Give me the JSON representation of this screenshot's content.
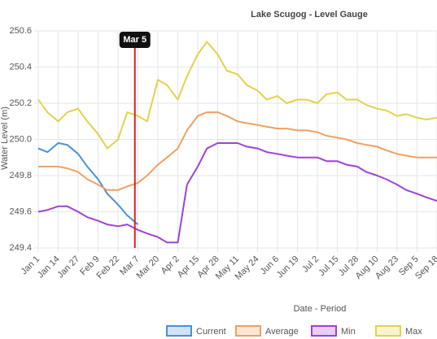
{
  "chart_data": {
    "type": "line",
    "title": "Lake Scugog - Level Gauge",
    "xlabel": "Date - Period",
    "ylabel": "Water Level (m)",
    "x": [
      0,
      6,
      13,
      19,
      26,
      32,
      39,
      45,
      52,
      58,
      65,
      71,
      78,
      84,
      91,
      97,
      104,
      110,
      117,
      123,
      130,
      136,
      143,
      149,
      156,
      162,
      169,
      175,
      182,
      188,
      195,
      201,
      208,
      214,
      221,
      227,
      234,
      240,
      247,
      253,
      260
    ],
    "xlim": [
      0,
      260
    ],
    "xticks": [
      {
        "value": 0,
        "label": "Jan 1"
      },
      {
        "value": 13,
        "label": "Jan 14"
      },
      {
        "value": 26,
        "label": "Jan 27"
      },
      {
        "value": 39,
        "label": "Feb 9"
      },
      {
        "value": 52,
        "label": "Feb 22"
      },
      {
        "value": 65,
        "label": "Mar 7"
      },
      {
        "value": 78,
        "label": "Mar 20"
      },
      {
        "value": 91,
        "label": "Apr 2"
      },
      {
        "value": 104,
        "label": "Apr 15"
      },
      {
        "value": 117,
        "label": "Apr 28"
      },
      {
        "value": 130,
        "label": "May 11"
      },
      {
        "value": 143,
        "label": "May 24"
      },
      {
        "value": 156,
        "label": "Jun 6"
      },
      {
        "value": 169,
        "label": "Jun 19"
      },
      {
        "value": 182,
        "label": "Jul 2"
      },
      {
        "value": 195,
        "label": "Jul 15"
      },
      {
        "value": 208,
        "label": "Jul 28"
      },
      {
        "value": 221,
        "label": "Aug 10"
      },
      {
        "value": 234,
        "label": "Aug 23"
      },
      {
        "value": 247,
        "label": "Sep 5"
      },
      {
        "value": 260,
        "label": "Sep 18"
      }
    ],
    "ylim": [
      249.4,
      250.6
    ],
    "yticks": [
      249.4,
      249.6,
      249.8,
      {
        "value": 250,
        "label": "250.0"
      },
      250.2,
      250.4,
      250.6
    ],
    "grid": true,
    "legend": "bottom",
    "marker": {
      "x": 63,
      "label": "Mar 5",
      "color": "#e02020"
    },
    "series": [
      {
        "name": "Current",
        "color": "#4a90d9",
        "values": [
          249.95,
          249.93,
          249.98,
          249.97,
          249.92,
          249.85,
          249.78,
          249.7,
          249.64,
          249.58,
          249.53,
          null,
          null,
          null,
          null,
          null,
          null,
          null,
          null,
          null,
          null,
          null,
          null,
          null,
          null,
          null,
          null,
          null,
          null,
          null,
          null,
          null,
          null,
          null,
          null,
          null,
          null,
          null,
          null,
          null,
          null
        ]
      },
      {
        "name": "Average",
        "color": "#f0a060",
        "values": [
          249.85,
          249.85,
          249.85,
          249.84,
          249.82,
          249.78,
          249.75,
          249.72,
          249.72,
          249.74,
          249.76,
          249.8,
          249.86,
          249.9,
          249.95,
          250.05,
          250.13,
          250.15,
          250.15,
          250.13,
          250.1,
          250.09,
          250.08,
          250.07,
          250.06,
          250.06,
          250.05,
          250.05,
          250.04,
          250.02,
          250.01,
          250.0,
          249.98,
          249.97,
          249.96,
          249.94,
          249.92,
          249.91,
          249.9,
          249.9,
          249.9
        ]
      },
      {
        "name": "Min",
        "color": "#a040d8",
        "values": [
          249.6,
          249.61,
          249.63,
          249.63,
          249.6,
          249.57,
          249.55,
          249.53,
          249.52,
          249.53,
          249.5,
          249.48,
          249.46,
          249.43,
          249.43,
          249.75,
          249.85,
          249.95,
          249.98,
          249.98,
          249.98,
          249.96,
          249.95,
          249.93,
          249.92,
          249.91,
          249.9,
          249.9,
          249.9,
          249.88,
          249.88,
          249.86,
          249.85,
          249.82,
          249.8,
          249.78,
          249.75,
          249.72,
          249.7,
          249.68,
          249.66
        ]
      },
      {
        "name": "Max",
        "color": "#e2d24c",
        "values": [
          250.22,
          250.15,
          250.1,
          250.15,
          250.17,
          250.1,
          250.03,
          249.95,
          250.0,
          250.15,
          250.13,
          250.1,
          250.33,
          250.3,
          250.22,
          250.35,
          250.47,
          250.54,
          250.47,
          250.38,
          250.36,
          250.3,
          250.27,
          250.22,
          250.24,
          250.2,
          250.22,
          250.22,
          250.2,
          250.25,
          250.26,
          250.22,
          250.22,
          250.19,
          250.17,
          250.16,
          250.13,
          250.14,
          250.12,
          250.11,
          250.12
        ]
      }
    ]
  }
}
